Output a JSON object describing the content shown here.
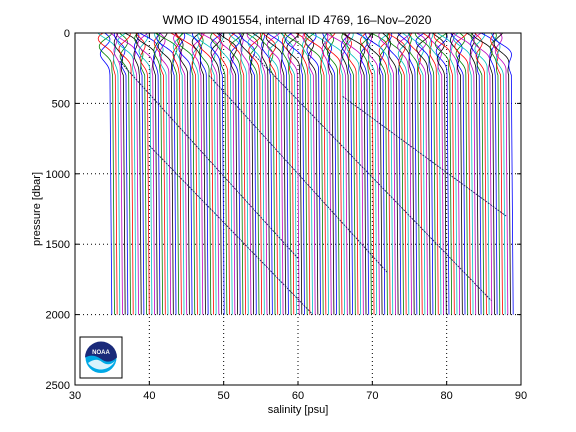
{
  "chart_data": {
    "type": "line",
    "title": "WMO ID 4901554, internal ID 4769, 16–Nov–2020",
    "xlabel": "salinity [psu]",
    "ylabel": "pressure [dbar]",
    "xlim": [
      30,
      90
    ],
    "ylim": [
      0,
      2500
    ],
    "y_reversed": true,
    "x_ticks": [
      30,
      40,
      50,
      60,
      70,
      80,
      90
    ],
    "y_ticks": [
      0,
      500,
      1000,
      1500,
      2000,
      2500
    ],
    "grid": true,
    "grid_style": "dotted",
    "profile_count": 151,
    "first_profile_surface_salinity": 34.0,
    "profile_offset_psu": 0.36,
    "profile_max_pressure": 2000,
    "series_colors": [
      "#0000ff",
      "#008000",
      "#ff0000",
      "#00bfbf",
      "#bf00bf",
      "#000000"
    ],
    "logo": {
      "name": "NOAA",
      "text": "NOAA"
    }
  }
}
